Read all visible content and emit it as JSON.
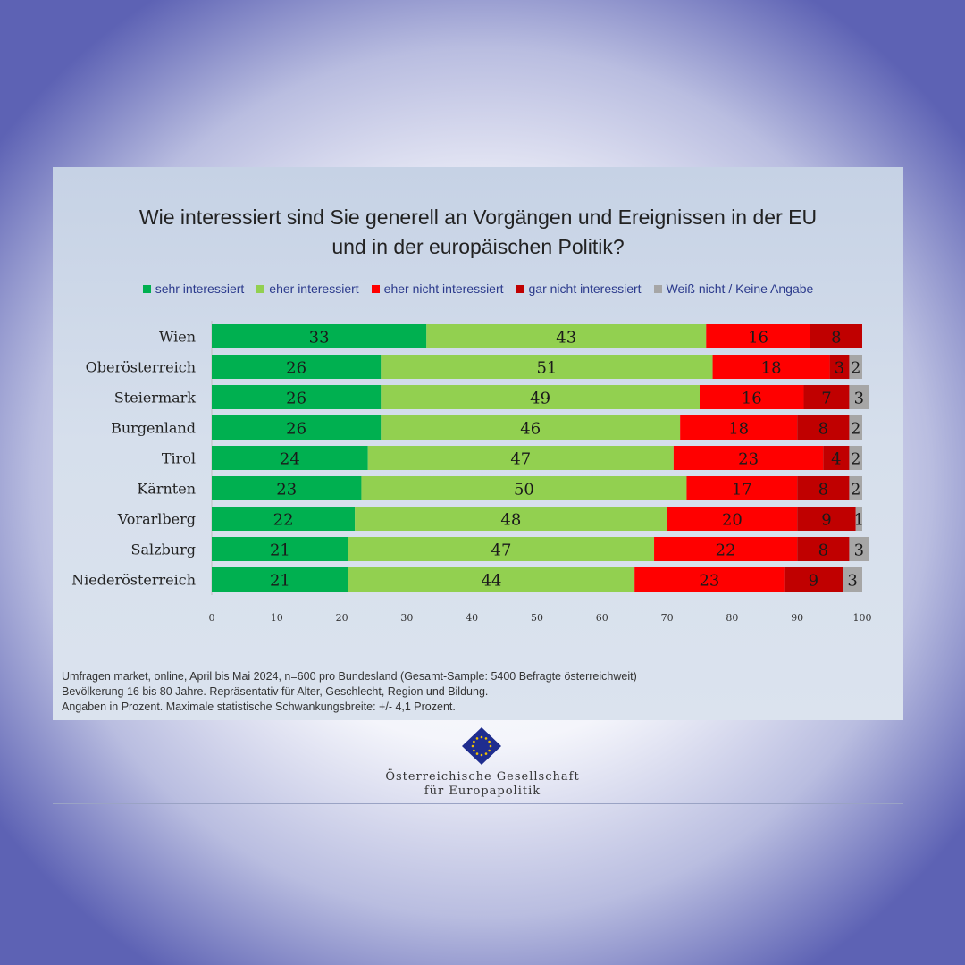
{
  "title_line1": "Wie interessiert sind Sie generell an Vorgängen und Ereignissen in der EU",
  "title_line2": "und in der europäischen Politik?",
  "colors": [
    "#00b050",
    "#92d050",
    "#ff0000",
    "#c00000",
    "#a6a6a6"
  ],
  "chart_data": {
    "type": "bar",
    "orientation": "horizontal",
    "stacked": true,
    "categories": [
      "Wien",
      "Oberösterreich",
      "Steiermark",
      "Burgenland",
      "Tirol",
      "Kärnten",
      "Vorarlberg",
      "Salzburg",
      "Niederösterreich"
    ],
    "series": [
      {
        "name": "sehr interessiert",
        "values": [
          33,
          26,
          26,
          26,
          24,
          23,
          22,
          21,
          21
        ]
      },
      {
        "name": "eher interessiert",
        "values": [
          43,
          51,
          49,
          46,
          47,
          50,
          48,
          47,
          44
        ]
      },
      {
        "name": "eher nicht interessiert",
        "values": [
          16,
          18,
          16,
          18,
          23,
          17,
          20,
          22,
          23
        ]
      },
      {
        "name": "gar nicht interessiert",
        "values": [
          8,
          3,
          7,
          8,
          4,
          8,
          9,
          8,
          9
        ]
      },
      {
        "name": "Weiß nicht / Keine Angabe",
        "values": [
          null,
          2,
          3,
          2,
          2,
          2,
          1,
          3,
          3
        ]
      }
    ],
    "xlim": [
      0,
      100
    ],
    "xticks": [
      0,
      10,
      20,
      30,
      40,
      50,
      60,
      70,
      80,
      90,
      100
    ],
    "legend_position": "top"
  },
  "note_lines": [
    "Umfragen market, online, April bis Mai 2024, n=600 pro Bundesland (Gesamt-Sample: 5400 Befragte österreichweit)",
    "Bevölkerung 16 bis 80 Jahre. Repräsentativ für Alter, Geschlecht, Region und Bildung.",
    "Angaben in Prozent. Maximale statistische Schwankungsbreite: +/- 4,1 Prozent."
  ],
  "org_line1": "Österreichische Gesellschaft",
  "org_line2": "für Europapolitik"
}
